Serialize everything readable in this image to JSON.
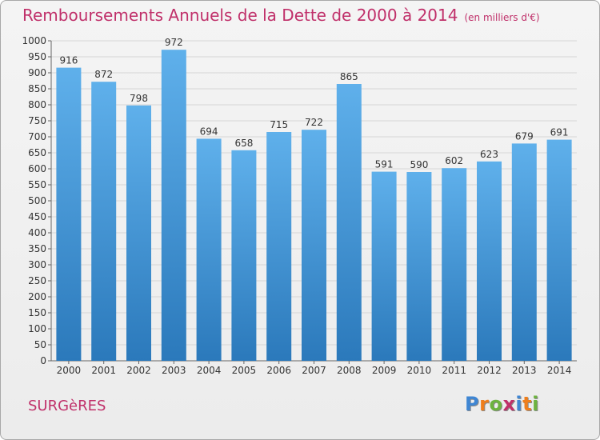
{
  "title": "Remboursements Annuels de la Dette de 2000 à 2014",
  "unit": "(en milliers d'€)",
  "commune": "SURGèRES",
  "brand": {
    "letters": [
      "P",
      "r",
      "o",
      "x",
      "i",
      "t",
      "i"
    ],
    "colors": [
      "#3f86d3",
      "#ef7e1c",
      "#6db33f",
      "#c0306a",
      "#3f86d3",
      "#ef7e1c",
      "#6db33f"
    ]
  },
  "colors": {
    "bar_top": "#5fb0eb",
    "bar_bottom": "#2b79bb",
    "title": "#c0306a",
    "grid": "#d6d6d6"
  },
  "chart_data": {
    "type": "bar",
    "title": "Remboursements Annuels de la Dette de 2000 à 2014",
    "categories": [
      "2000",
      "2001",
      "2002",
      "2003",
      "2004",
      "2005",
      "2006",
      "2007",
      "2008",
      "2009",
      "2010",
      "2011",
      "2012",
      "2013",
      "2014"
    ],
    "values": [
      916,
      872,
      798,
      972,
      694,
      658,
      715,
      722,
      865,
      591,
      590,
      602,
      623,
      679,
      691
    ],
    "ylim": [
      0,
      1000
    ],
    "yticks": [
      0,
      50,
      100,
      150,
      200,
      250,
      300,
      350,
      400,
      450,
      500,
      550,
      600,
      650,
      700,
      750,
      800,
      850,
      900,
      950,
      1000
    ],
    "grid": true,
    "data_labels": true
  }
}
